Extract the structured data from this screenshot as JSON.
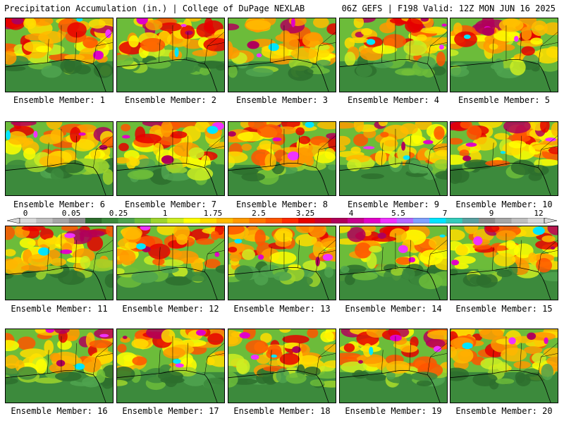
{
  "header": {
    "left": "Precipitation Accumulation (in.) | College of DuPage NEXLAB",
    "right": "06Z GEFS | F198 Valid: 12Z MON JUN 16 2025"
  },
  "colorbar": {
    "ticks": [
      "0",
      "0.05",
      "0.25",
      "1",
      "1.75",
      "2.5",
      "3.25",
      "4",
      "5.5",
      "7",
      "9",
      "12"
    ],
    "colors": [
      "#d9d9d9",
      "#bfbfbf",
      "#a6a6a6",
      "#8c8c8c",
      "#2d6e2d",
      "#3c8a3c",
      "#4fa34f",
      "#6cbc3a",
      "#9ed42c",
      "#ccee22",
      "#ffff00",
      "#ffdd00",
      "#ffbb00",
      "#ff9900",
      "#ff7700",
      "#ff5500",
      "#ff2a00",
      "#e60000",
      "#c8002d",
      "#b0005a",
      "#c8008c",
      "#e100c8",
      "#f032ff",
      "#b469ff",
      "#7fa0ff",
      "#00e5ff",
      "#33ccbb",
      "#5aa0a0",
      "#8c8c8c",
      "#a6a6a6",
      "#bfbfbf",
      "#d9d9d9"
    ]
  },
  "members": [
    {
      "label": "Ensemble Member: 1"
    },
    {
      "label": "Ensemble Member: 2"
    },
    {
      "label": "Ensemble Member: 3"
    },
    {
      "label": "Ensemble Member: 4"
    },
    {
      "label": "Ensemble Member: 5"
    },
    {
      "label": "Ensemble Member: 6"
    },
    {
      "label": "Ensemble Member: 7"
    },
    {
      "label": "Ensemble Member: 8"
    },
    {
      "label": "Ensemble Member: 9"
    },
    {
      "label": "Ensemble Member: 10"
    },
    {
      "label": "Ensemble Member: 11"
    },
    {
      "label": "Ensemble Member: 12"
    },
    {
      "label": "Ensemble Member: 13"
    },
    {
      "label": "Ensemble Member: 14"
    },
    {
      "label": "Ensemble Member: 15"
    },
    {
      "label": "Ensemble Member: 16"
    },
    {
      "label": "Ensemble Member: 17"
    },
    {
      "label": "Ensemble Member: 18"
    },
    {
      "label": "Ensemble Member: 19"
    },
    {
      "label": "Ensemble Member: 20"
    }
  ]
}
